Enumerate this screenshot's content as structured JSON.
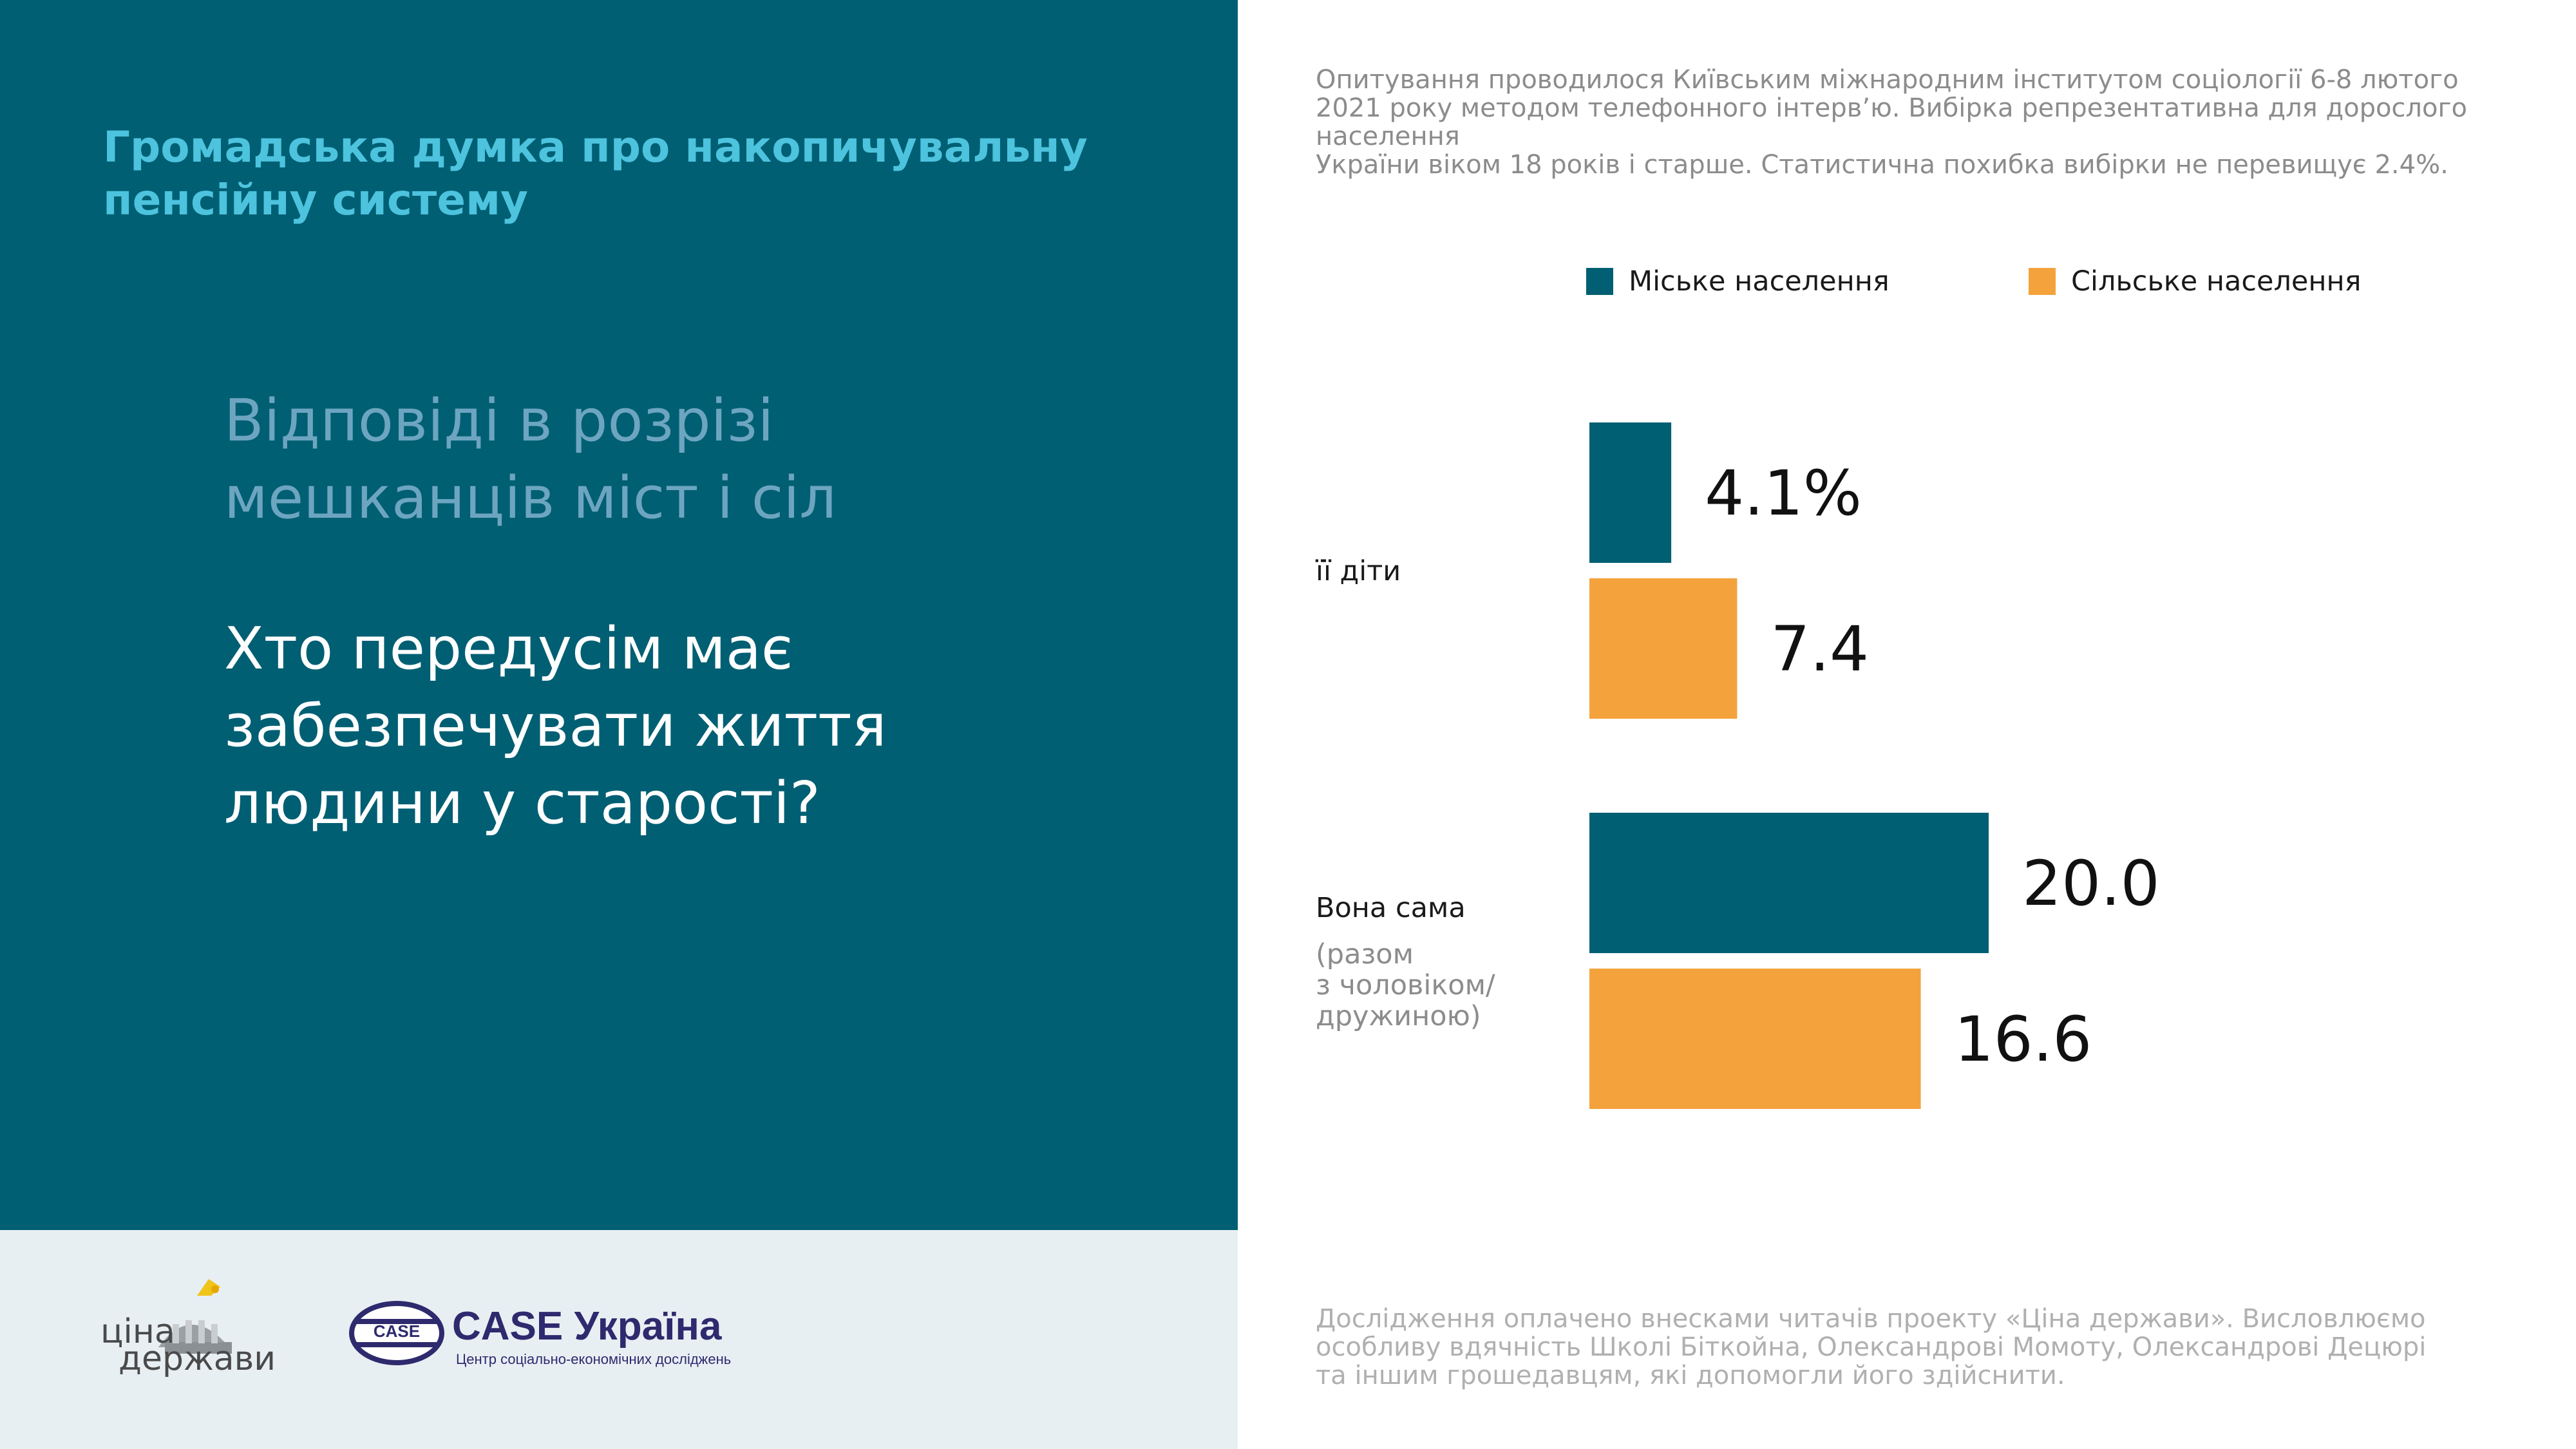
{
  "header": {
    "title": "Громадська думка про накопичувальну\nпенсійну систему"
  },
  "subtitle": "Відповіді в розрізі\nмешканців міст і сіл",
  "question": "Хто передусім має\nзабезпечувати життя\nлюдини у старості?",
  "survey_note": "Опитування проводилося Київським міжнародним інститутом соціології 6-8 лютого\n2021 року методом телефонного інтерв’ю. Вибірка репрезентативна для дорослого населення\nУкраїни віком 18 років і старше. Статистична похибка вибірки не перевищує 2.4%.",
  "footer_note": "Дослідження оплачено внесками читачів проекту «Ціна держави». Висловлюємо\nособливу вдячність Школі Біткойна, Олександрові Момоту, Олександрові Децюрі\nта іншим грошедавцям, які допомогли його здійснити.",
  "logos": {
    "cina_line1": "ціна",
    "cina_line2": "держави",
    "case_name": "CASE Україна",
    "case_ellipse": "CASE",
    "case_sub": "Центр соціально-економічних досліджень"
  },
  "colors": {
    "panel": "#005f73",
    "urban": "#005f73",
    "rural": "#f4a23c",
    "accent_title": "#4dc3de"
  },
  "chart_data": {
    "type": "bar",
    "orientation": "horizontal",
    "categories": [
      "її діти",
      "Вона сама"
    ],
    "category_notes": [
      "",
      "(разом\nз чоловіком/\nдружиною)"
    ],
    "series": [
      {
        "name": "Міське населення",
        "values": [
          4.1,
          20.0
        ],
        "labels": [
          "4.1%",
          "20.0"
        ]
      },
      {
        "name": "Сільське населення",
        "values": [
          7.4,
          16.6
        ],
        "labels": [
          "7.4",
          "16.6"
        ]
      }
    ],
    "legend_position": "top",
    "grid": false,
    "axes_visible": false
  }
}
